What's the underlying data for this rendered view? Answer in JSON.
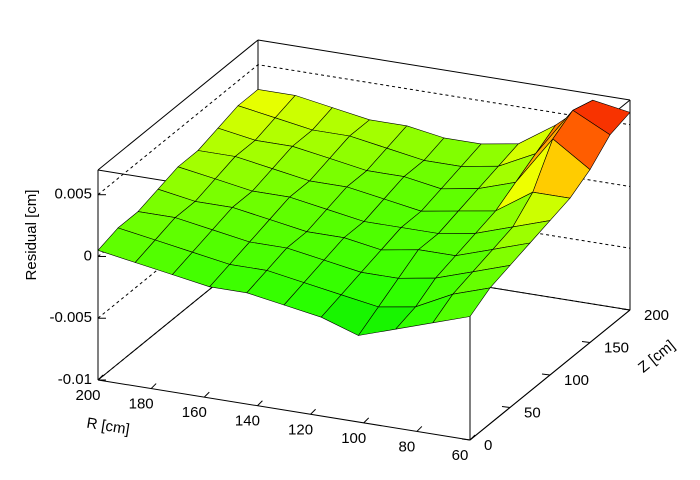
{
  "chart_data": {
    "type": "surface",
    "xlabel": "R [cm]",
    "ylabel": "Z [cm]",
    "zlabel": "Residual [cm]",
    "x": [
      200,
      186,
      172,
      158,
      144,
      130,
      116,
      102,
      88,
      74,
      60
    ],
    "y": [
      0,
      25,
      50,
      75,
      100,
      125,
      150,
      175,
      200
    ],
    "values": [
      [
        0.0005,
        0,
        -0.0005,
        -0.001,
        -0.001,
        -0.0015,
        -0.002,
        -0.003,
        -0.002,
        -0.001,
        0
      ],
      [
        0.001,
        0.0005,
        0,
        -0.0005,
        -0.0005,
        -0.001,
        -0.0015,
        -0.002,
        -0.0015,
        0,
        0.001
      ],
      [
        0.001,
        0.001,
        0.0005,
        0,
        0,
        -0.0005,
        -0.001,
        -0.001,
        -0.0005,
        0.0005,
        0.0015
      ],
      [
        0.0015,
        0.001,
        0.001,
        0.0005,
        0,
        0,
        -0.0005,
        0,
        0,
        0.001,
        0.002
      ],
      [
        0.002,
        0.0015,
        0.001,
        0.001,
        0.0005,
        0,
        0,
        0,
        0.0005,
        0.0015,
        0.0025
      ],
      [
        0.002,
        0.002,
        0.0015,
        0.001,
        0.001,
        0.0005,
        0,
        0.0005,
        0.001,
        0.003,
        0.003
      ],
      [
        0.0025,
        0.002,
        0.002,
        0.0015,
        0.001,
        0.001,
        0.0005,
        0.001,
        0.002,
        0.006,
        0.004
      ],
      [
        0.003,
        0.0025,
        0.002,
        0.002,
        0.0015,
        0.001,
        0.001,
        0.0015,
        0.003,
        0.007,
        0.0055
      ],
      [
        0.003,
        0.003,
        0.0025,
        0.002,
        0.002,
        0.0015,
        0.0015,
        0.002,
        0.004,
        0.0065,
        0.006
      ]
    ],
    "xlim": [
      60,
      200
    ],
    "xticks": [
      200,
      180,
      160,
      140,
      120,
      100,
      80,
      60
    ],
    "ylim": [
      0,
      200
    ],
    "yticks": [
      0,
      50,
      100,
      150,
      200
    ],
    "zlim": [
      -0.01,
      0.007
    ],
    "zticks": [
      -0.01,
      -0.005,
      0,
      0.005
    ],
    "grid": true,
    "colormap": [
      "#00dd00",
      "#22ff00",
      "#44ff00",
      "#66ff00",
      "#aaff00",
      "#ffff00",
      "#ffaa00",
      "#ff5500",
      "#ee0000"
    ]
  }
}
